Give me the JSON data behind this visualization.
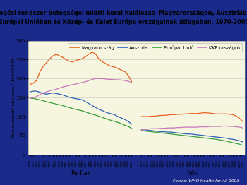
{
  "title": "A keringési rendszer betegségei miatti korai halálozás  Magyarországon, Ausztriában, az\nEurópai Unióban és Közép- és Kelet Európa országainak átlagában, 1970-2001",
  "ylabel": "Standardizált halálozás / 100,000 fő",
  "xlabel_left": "Férfiak",
  "xlabel_right": "Nők",
  "source": "Forrás: WHO Health for All 2003",
  "years": [
    1970,
    1971,
    1972,
    1973,
    1974,
    1975,
    1976,
    1977,
    1978,
    1979,
    1980,
    1981,
    1982,
    1983,
    1984,
    1985,
    1986,
    1987,
    1988,
    1989,
    1990,
    1991,
    1992,
    1993,
    1994,
    1995,
    1996,
    1997,
    1998,
    1999,
    2000,
    2001
  ],
  "legend_labels": [
    "Magyarország",
    "Ausztria",
    "Európai Unió",
    "KKE országok"
  ],
  "colors": [
    "#e86020",
    "#3060b8",
    "#38a038",
    "#c878b8"
  ],
  "male_magyarorszag": [
    185,
    188,
    195,
    218,
    232,
    242,
    252,
    260,
    264,
    260,
    256,
    250,
    246,
    244,
    248,
    250,
    253,
    258,
    265,
    270,
    265,
    252,
    245,
    240,
    235,
    232,
    230,
    226,
    222,
    218,
    208,
    193
  ],
  "male_ausztria": [
    165,
    167,
    167,
    164,
    161,
    159,
    161,
    162,
    161,
    159,
    157,
    154,
    151,
    149,
    147,
    146,
    144,
    139,
    134,
    129,
    124,
    119,
    116,
    112,
    109,
    107,
    104,
    99,
    96,
    92,
    87,
    80
  ],
  "male_eu": [
    148,
    148,
    146,
    144,
    142,
    139,
    137,
    135,
    133,
    131,
    129,
    126,
    124,
    121,
    119,
    117,
    115,
    112,
    109,
    106,
    104,
    101,
    98,
    95,
    92,
    89,
    87,
    84,
    81,
    77,
    74,
    69
  ],
  "male_kke": [
    148,
    150,
    153,
    158,
    162,
    165,
    168,
    170,
    172,
    175,
    178,
    180,
    182,
    184,
    186,
    188,
    190,
    192,
    195,
    198,
    200,
    200,
    200,
    199,
    198,
    198,
    197,
    197,
    196,
    195,
    193,
    190
  ],
  "female_magyarorszag": [
    100,
    100,
    100,
    101,
    101,
    102,
    103,
    103,
    104,
    105,
    105,
    106,
    106,
    107,
    107,
    108,
    108,
    108,
    109,
    110,
    110,
    109,
    108,
    107,
    107,
    107,
    107,
    106,
    105,
    101,
    95,
    87
  ],
  "female_ausztria": [
    65,
    65,
    64,
    63,
    62,
    61,
    60,
    60,
    59,
    59,
    58,
    57,
    56,
    55,
    54,
    54,
    53,
    52,
    51,
    50,
    49,
    48,
    47,
    46,
    45,
    44,
    43,
    41,
    40,
    38,
    36,
    33
  ],
  "female_eu": [
    63,
    62,
    61,
    60,
    59,
    58,
    57,
    56,
    55,
    54,
    53,
    52,
    51,
    50,
    49,
    48,
    47,
    46,
    45,
    44,
    43,
    42,
    41,
    40,
    38,
    37,
    35,
    33,
    31,
    29,
    27,
    24
  ],
  "female_kke": [
    65,
    66,
    67,
    68,
    68,
    68,
    69,
    69,
    70,
    70,
    70,
    71,
    71,
    72,
    72,
    72,
    72,
    72,
    73,
    73,
    73,
    74,
    74,
    74,
    74,
    75,
    75,
    74,
    74,
    73,
    72,
    70
  ],
  "ylim": [
    0,
    300
  ],
  "yticks": [
    0,
    50,
    100,
    150,
    200,
    250,
    300
  ],
  "bg_color": "#f5f5e0",
  "title_bg": "#c8d4e8",
  "footer_bg": "#1a2a8a",
  "grid_color": "#d0d0c0"
}
